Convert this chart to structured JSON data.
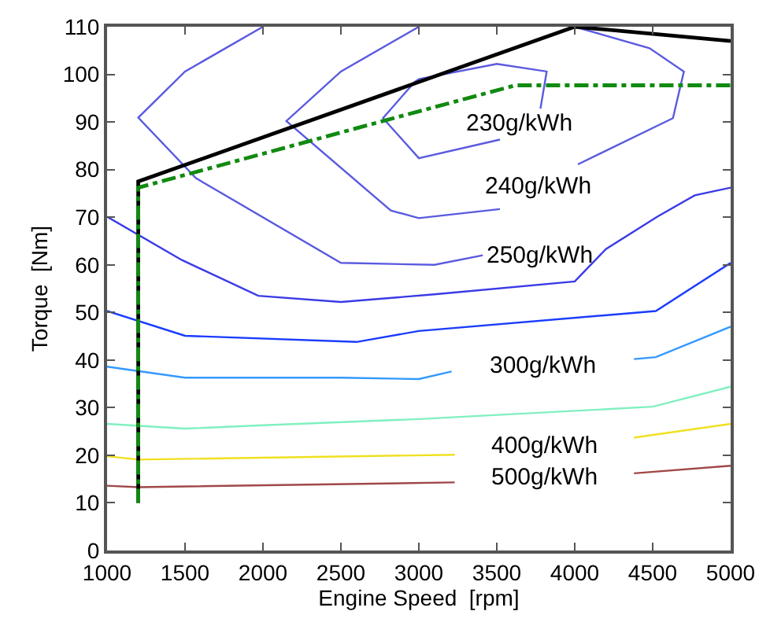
{
  "chart_data": {
    "type": "line",
    "xlabel": "Engine Speed  [rpm]",
    "ylabel": "Torque  [Nm]",
    "xlim": [
      1000,
      5000
    ],
    "xticks": [
      1000,
      1500,
      2000,
      2500,
      3000,
      3500,
      4000,
      4500,
      5000
    ],
    "ylim": [
      0,
      110
    ],
    "yticks": [
      0,
      10,
      20,
      30,
      40,
      50,
      60,
      70,
      80,
      90,
      100,
      110
    ],
    "legend": false,
    "marker": "none",
    "series": [
      {
        "name": "500g/kWh",
        "color": "#a04848",
        "x": [
          1000,
          1200,
          3230,
          null,
          4380,
          5000
        ],
        "values": [
          13.6,
          13.3,
          14.3,
          null,
          16.2,
          17.8
        ]
      },
      {
        "name": "400g/kWh",
        "color": "#f0e020",
        "x": [
          1000,
          1200,
          3230,
          null,
          4380,
          5000
        ],
        "values": [
          19.8,
          19.1,
          20.1,
          null,
          23.7,
          26.6
        ]
      },
      {
        "color": "#80f0c0",
        "x": [
          1000,
          1500,
          2000,
          3000,
          4500,
          5000
        ],
        "values": [
          26.6,
          25.6,
          26.3,
          27.6,
          30.2,
          34.4
        ]
      },
      {
        "name": "300g/kWh",
        "color": "#3399ff",
        "x": [
          1000,
          1500,
          2500,
          3000,
          3210,
          null,
          4380,
          4520,
          5000
        ],
        "values": [
          38.6,
          36.3,
          36.3,
          36.0,
          37.6,
          null,
          40.2,
          40.6,
          47.0
        ]
      },
      {
        "color": "#1a3cff",
        "x": [
          1000,
          1500,
          2600,
          3000,
          4520,
          5000
        ],
        "values": [
          50.3,
          45.1,
          43.8,
          46.1,
          50.3,
          60.4
        ]
      },
      {
        "color": "#3a3ae8",
        "x": [
          1000,
          1480,
          1970,
          2500,
          3100,
          4000,
          4200,
          4530,
          4770,
          5000
        ],
        "values": [
          70.1,
          61.0,
          53.5,
          52.2,
          53.8,
          56.5,
          63.3,
          70.1,
          74.6,
          76.2
        ]
      },
      {
        "name": "250g/kWh",
        "color": "#5a5ae0",
        "x": [
          2000,
          1500,
          1200,
          1570,
          2500,
          3100,
          3410
        ],
        "values": [
          110,
          100.6,
          90.9,
          78.2,
          60.4,
          60.0,
          62.0
        ]
      },
      {
        "name": "240g/kWh",
        "color": "#5a5ae0",
        "x": [
          3000,
          2500,
          2150,
          2820,
          3000,
          3520,
          null,
          4020,
          4630,
          4700,
          4480,
          4000
        ],
        "values": [
          110,
          100.6,
          90.2,
          71.4,
          69.8,
          71.7,
          null,
          81.1,
          90.8,
          100.6,
          105.5,
          110
        ]
      },
      {
        "name": "230g/kWh",
        "color": "#5a5ae0",
        "x": [
          2970,
          2770,
          3000,
          3520,
          null,
          3780,
          3820,
          3500,
          3000,
          2970
        ],
        "values": [
          98.3,
          90.8,
          82.4,
          86.3,
          null,
          92.8,
          100.6,
          102.2,
          99.0,
          98.3
        ]
      },
      {
        "color": "#000000",
        "line_style": "solid",
        "x": [
          1200,
          1200,
          4000,
          5000
        ],
        "values": [
          10,
          77.5,
          110,
          107
        ]
      },
      {
        "color": "#108a10",
        "line_style": "dashdot",
        "x": [
          1200,
          1200,
          2770,
          3620,
          5000
        ],
        "values": [
          10,
          76.2,
          90.2,
          97.7,
          97.7
        ]
      }
    ]
  }
}
